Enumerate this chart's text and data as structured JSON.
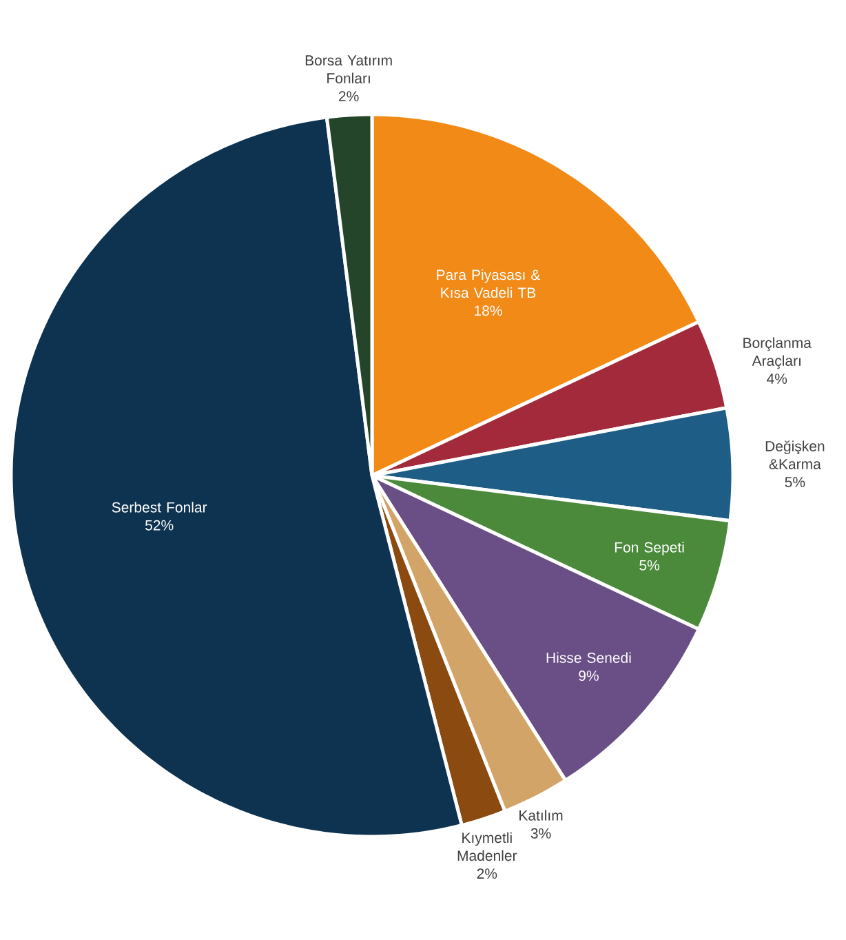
{
  "chart_data": {
    "type": "pie",
    "categories": [
      "Para Piyasası & Kısa Vadeli TB",
      "Borçlanma Araçları",
      "Değişken &Karma",
      "Fon Sepeti",
      "Hisse Senedi",
      "Katılım",
      "Kıymetli Madenler",
      "Serbest Fonlar",
      "Borsa Yatırım Fonları"
    ],
    "values": [
      18,
      4,
      5,
      5,
      9,
      3,
      2,
      52,
      2
    ],
    "value_labels": [
      "18%",
      "4%",
      "5%",
      "5%",
      "9%",
      "3%",
      "2%",
      "52%",
      "2%"
    ],
    "colors": [
      "#f28a18",
      "#a32a3a",
      "#1d5d86",
      "#4a8a3a",
      "#6a4e86",
      "#d2a468",
      "#8a4a10",
      "#0e3350",
      "#25452a"
    ]
  }
}
